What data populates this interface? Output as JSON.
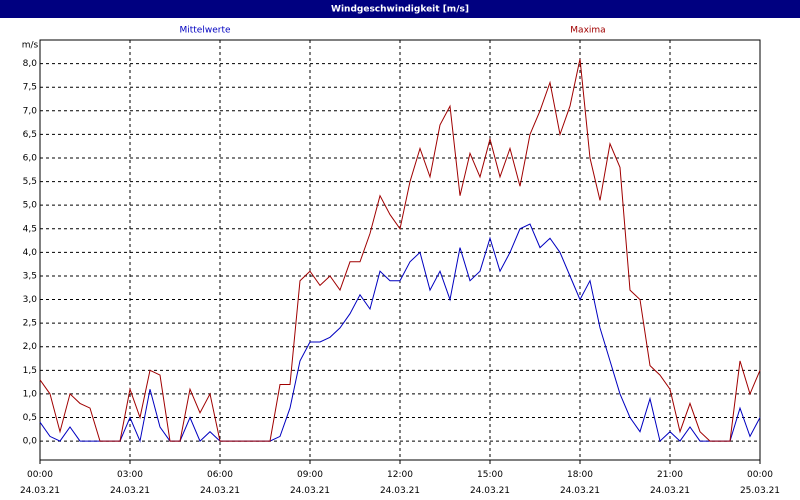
{
  "window_title": "Windgeschwindigkeit [m/s]",
  "chart_data": {
    "type": "line",
    "y_label": "m/s",
    "categories": [
      "00:00 24.03.21",
      null,
      null,
      null,
      null,
      null,
      null,
      null,
      null,
      "03:00 24.03.21",
      null,
      null,
      null,
      null,
      null,
      null,
      null,
      null,
      "06:00 24.03.21",
      null,
      null,
      null,
      null,
      null,
      null,
      null,
      null,
      "09:00 24.03.21",
      null,
      null,
      null,
      null,
      null,
      null,
      null,
      null,
      "12:00 24.03.21",
      null,
      null,
      null,
      null,
      null,
      null,
      null,
      null,
      "15:00 24.03.21",
      null,
      null,
      null,
      null,
      null,
      null,
      null,
      null,
      "18:00 24.03.21",
      null,
      null,
      null,
      null,
      null,
      null,
      null,
      null,
      "21:00 24.03.21",
      null,
      null,
      null,
      null,
      null,
      null,
      null,
      null,
      "00:00 25.03.21"
    ],
    "series": [
      {
        "name": "Mittelwerte",
        "color": "#0000c0",
        "values": [
          0.4,
          0.1,
          0,
          0.3,
          0,
          0,
          0,
          0,
          0,
          0.5,
          0,
          1.1,
          0.3,
          0,
          0,
          0.5,
          0,
          0.2,
          0,
          0,
          0,
          0,
          0,
          0,
          0.1,
          0.7,
          1.7,
          2.1,
          2.1,
          2.2,
          2.4,
          2.7,
          3.1,
          2.8,
          3.6,
          3.4,
          3.4,
          3.8,
          4.0,
          3.2,
          3.6,
          3.0,
          4.1,
          3.4,
          3.6,
          4.3,
          3.6,
          4.0,
          4.5,
          4.6,
          4.1,
          4.3,
          4.0,
          3.5,
          3.0,
          3.4,
          2.4,
          1.7,
          1.0,
          0.5,
          0.2,
          0.9,
          0,
          0.2,
          0,
          0.3,
          0,
          0,
          0,
          0,
          0.7,
          0.1,
          0.5
        ]
      },
      {
        "name": "Maxima",
        "color": "#a00000",
        "values": [
          1.3,
          1.0,
          0.2,
          1.0,
          0.8,
          0.7,
          0,
          0,
          0,
          1.1,
          0.5,
          1.5,
          1.4,
          0,
          0,
          1.1,
          0.6,
          1.0,
          0,
          0,
          0,
          0,
          0,
          0,
          1.2,
          1.2,
          3.4,
          3.6,
          3.3,
          3.5,
          3.2,
          3.8,
          3.8,
          4.4,
          5.2,
          4.8,
          4.5,
          5.5,
          6.2,
          5.6,
          6.7,
          7.1,
          5.2,
          6.1,
          5.6,
          6.4,
          5.6,
          6.2,
          5.4,
          6.5,
          7.0,
          7.6,
          6.5,
          7.1,
          8.1,
          6.0,
          5.1,
          6.3,
          5.8,
          3.2,
          3.0,
          1.6,
          1.4,
          1.1,
          0.2,
          0.8,
          0.2,
          0,
          0,
          0,
          1.7,
          1.0,
          1.5
        ]
      }
    ],
    "ylim": [
      -0.4,
      8.5
    ],
    "yticks": [
      {
        "value": 0,
        "label": "0,0"
      },
      {
        "value": 0.5,
        "label": "0,5"
      },
      {
        "value": 1,
        "label": "1,0"
      },
      {
        "value": 1.5,
        "label": "1,5"
      },
      {
        "value": 2,
        "label": "2,0"
      },
      {
        "value": 2.5,
        "label": "2,5"
      },
      {
        "value": 3,
        "label": "3,0"
      },
      {
        "value": 3.5,
        "label": "3,5"
      },
      {
        "value": 4,
        "label": "4,0"
      },
      {
        "value": 4.5,
        "label": "4,5"
      },
      {
        "value": 5,
        "label": "5,0"
      },
      {
        "value": 5.5,
        "label": "5,5"
      },
      {
        "value": 6,
        "label": "6,0"
      },
      {
        "value": 6.5,
        "label": "6,5"
      },
      {
        "value": 7,
        "label": "7,0"
      },
      {
        "value": 7.5,
        "label": "7,5"
      },
      {
        "value": 8,
        "label": "8,0"
      }
    ],
    "grid": true
  }
}
